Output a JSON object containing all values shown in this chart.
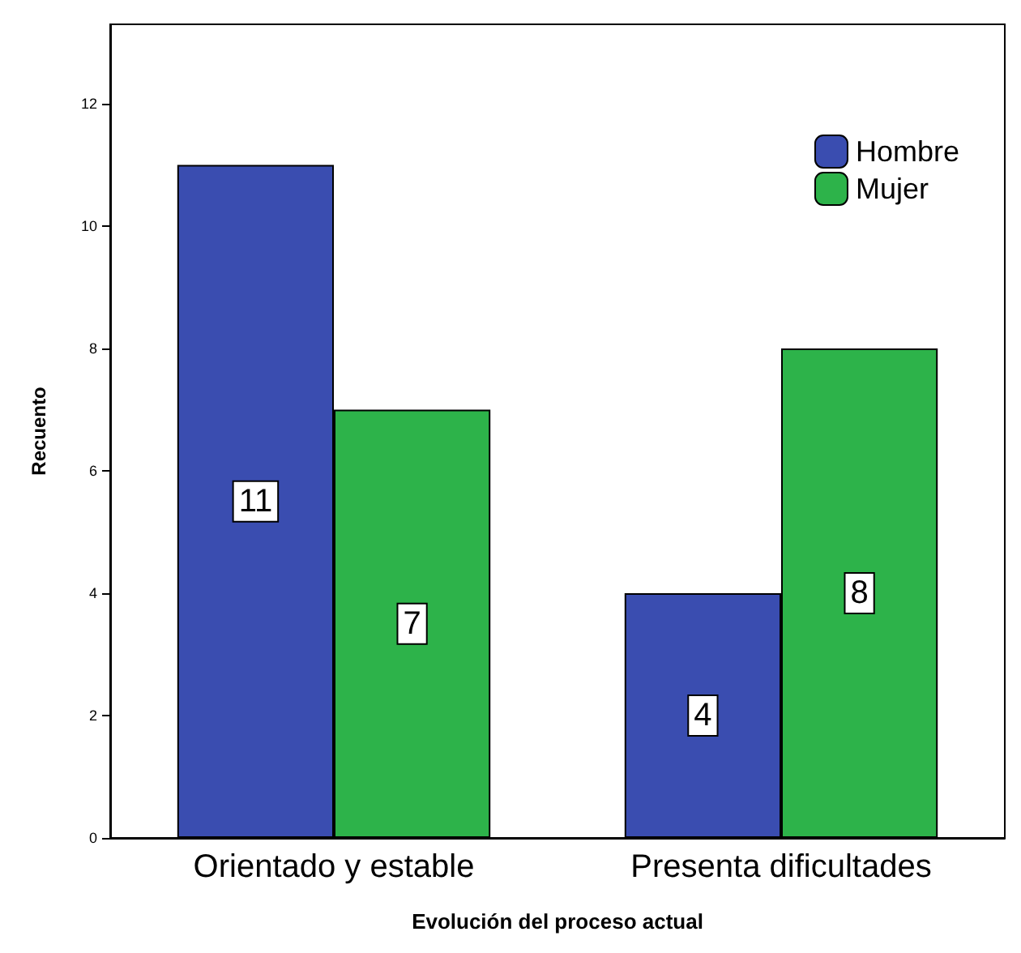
{
  "chart_data": {
    "type": "bar",
    "xlabel": "Evolución del proceso actual",
    "ylabel": "Recuento",
    "categories": [
      "Orientado y estable",
      "Presenta dificultades"
    ],
    "series": [
      {
        "name": "Hombre",
        "color": "#3a4db0",
        "values": [
          11,
          4
        ]
      },
      {
        "name": "Mujer",
        "color": "#2db34a",
        "values": [
          7,
          8
        ]
      }
    ],
    "ylim": [
      0,
      13.3
    ],
    "yticks": [
      0,
      2,
      4,
      6,
      8,
      10,
      12
    ],
    "grid": false,
    "legend": "top right",
    "data_labels": true
  }
}
